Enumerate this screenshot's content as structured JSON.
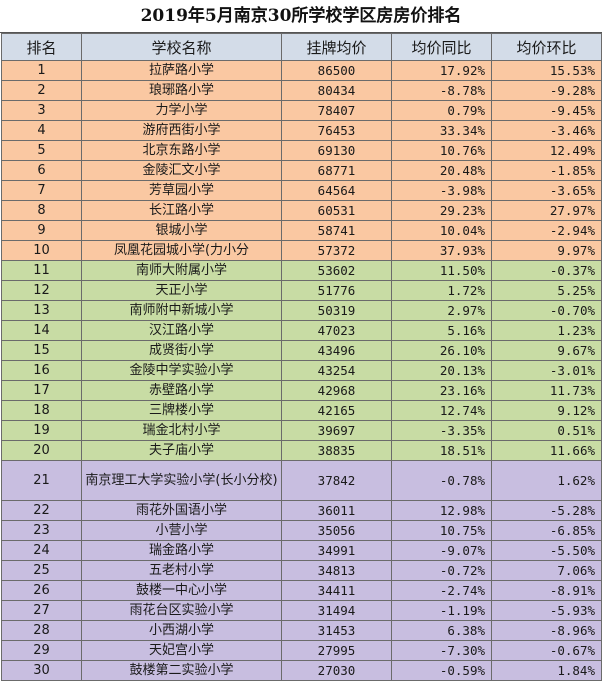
{
  "title": "2019年5月南京30所学校学区房房价排名",
  "headers": [
    "排名",
    "学校名称",
    "挂牌均价",
    "均价同比",
    "均价环比"
  ],
  "tiers": [
    {
      "color": "#fac8a2",
      "ranks": "1-10"
    },
    {
      "color": "#c8dca4",
      "ranks": "11-20"
    },
    {
      "color": "#c8bee0",
      "ranks": "21-30"
    }
  ],
  "rows": [
    {
      "rank": "1",
      "school": "拉萨路小学",
      "price": "86500",
      "yoy": "17.92%",
      "mom": "15.53%"
    },
    {
      "rank": "2",
      "school": "琅琊路小学",
      "price": "80434",
      "yoy": "-8.78%",
      "mom": "-9.28%"
    },
    {
      "rank": "3",
      "school": "力学小学",
      "price": "78407",
      "yoy": "0.79%",
      "mom": "-9.45%"
    },
    {
      "rank": "4",
      "school": "游府西街小学",
      "price": "76453",
      "yoy": "33.34%",
      "mom": "-3.46%"
    },
    {
      "rank": "5",
      "school": "北京东路小学",
      "price": "69130",
      "yoy": "10.76%",
      "mom": "12.49%"
    },
    {
      "rank": "6",
      "school": "金陵汇文小学",
      "price": "68771",
      "yoy": "20.48%",
      "mom": "-1.85%"
    },
    {
      "rank": "7",
      "school": "芳草园小学",
      "price": "64564",
      "yoy": "-3.98%",
      "mom": "-3.65%"
    },
    {
      "rank": "8",
      "school": "长江路小学",
      "price": "60531",
      "yoy": "29.23%",
      "mom": "27.97%"
    },
    {
      "rank": "9",
      "school": "银城小学",
      "price": "58741",
      "yoy": "10.04%",
      "mom": "-2.94%"
    },
    {
      "rank": "10",
      "school": "凤凰花园城小学(力小分",
      "price": "57372",
      "yoy": "37.93%",
      "mom": "9.97%"
    },
    {
      "rank": "11",
      "school": "南师大附属小学",
      "price": "53602",
      "yoy": "11.50%",
      "mom": "-0.37%"
    },
    {
      "rank": "12",
      "school": "天正小学",
      "price": "51776",
      "yoy": "1.72%",
      "mom": "5.25%"
    },
    {
      "rank": "13",
      "school": "南师附中新城小学",
      "price": "50319",
      "yoy": "2.97%",
      "mom": "-0.70%"
    },
    {
      "rank": "14",
      "school": "汉江路小学",
      "price": "47023",
      "yoy": "5.16%",
      "mom": "1.23%"
    },
    {
      "rank": "15",
      "school": "成贤街小学",
      "price": "43496",
      "yoy": "26.10%",
      "mom": "9.67%"
    },
    {
      "rank": "16",
      "school": "金陵中学实验小学",
      "price": "43254",
      "yoy": "20.13%",
      "mom": "-3.01%"
    },
    {
      "rank": "17",
      "school": "赤壁路小学",
      "price": "42968",
      "yoy": "23.16%",
      "mom": "11.73%"
    },
    {
      "rank": "18",
      "school": "三牌楼小学",
      "price": "42165",
      "yoy": "12.74%",
      "mom": "9.12%"
    },
    {
      "rank": "19",
      "school": "瑞金北村小学",
      "price": "39697",
      "yoy": "-3.35%",
      "mom": "0.51%"
    },
    {
      "rank": "20",
      "school": "夫子庙小学",
      "price": "38835",
      "yoy": "18.51%",
      "mom": "11.66%"
    },
    {
      "rank": "21",
      "school": "南京理工大学实验小学(长小分校)",
      "price": "37842",
      "yoy": "-0.78%",
      "mom": "1.62%"
    },
    {
      "rank": "22",
      "school": "雨花外国语小学",
      "price": "36011",
      "yoy": "12.98%",
      "mom": "-5.28%"
    },
    {
      "rank": "23",
      "school": "小营小学",
      "price": "35056",
      "yoy": "10.75%",
      "mom": "-6.85%"
    },
    {
      "rank": "24",
      "school": "瑞金路小学",
      "price": "34991",
      "yoy": "-9.07%",
      "mom": "-5.50%"
    },
    {
      "rank": "25",
      "school": "五老村小学",
      "price": "34813",
      "yoy": "-0.72%",
      "mom": "7.06%"
    },
    {
      "rank": "26",
      "school": "鼓楼一中心小学",
      "price": "34411",
      "yoy": "-2.74%",
      "mom": "-8.91%"
    },
    {
      "rank": "27",
      "school": "雨花台区实验小学",
      "price": "31494",
      "yoy": "-1.19%",
      "mom": "-5.93%"
    },
    {
      "rank": "28",
      "school": "小西湖小学",
      "price": "31453",
      "yoy": "6.38%",
      "mom": "-8.96%"
    },
    {
      "rank": "29",
      "school": "天妃宫小学",
      "price": "27995",
      "yoy": "-7.30%",
      "mom": "-0.67%"
    },
    {
      "rank": "30",
      "school": "鼓楼第二实验小学",
      "price": "27030",
      "yoy": "-0.59%",
      "mom": "1.84%"
    }
  ]
}
